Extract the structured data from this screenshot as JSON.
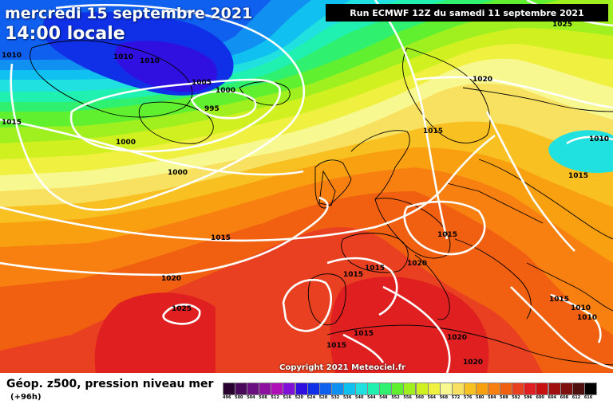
{
  "header": {
    "date": "mercredi 15 septembre 2021",
    "time": "14:00 locale",
    "run": "Run ECMWF 12Z du samedi 11 septembre 2021"
  },
  "map": {
    "copyright": "Copyright 2021 Meteociel.fr",
    "isobar_labels": [
      {
        "id": "l1",
        "text": "1025"
      },
      {
        "id": "l2",
        "text": "1010"
      },
      {
        "id": "l3",
        "text": "1010"
      },
      {
        "id": "l4",
        "text": "1010"
      },
      {
        "id": "l5",
        "text": "1005"
      },
      {
        "id": "l6",
        "text": "1000"
      },
      {
        "id": "l7",
        "text": "995"
      },
      {
        "id": "l8",
        "text": "1015"
      },
      {
        "id": "l9",
        "text": "1000"
      },
      {
        "id": "l10",
        "text": "1000"
      },
      {
        "id": "l11",
        "text": "1020"
      },
      {
        "id": "l12",
        "text": "1015"
      },
      {
        "id": "l13",
        "text": "1010"
      },
      {
        "id": "l14",
        "text": "1015"
      },
      {
        "id": "l15",
        "text": "1015"
      },
      {
        "id": "l16",
        "text": "1015"
      },
      {
        "id": "l17",
        "text": "1020"
      },
      {
        "id": "l18",
        "text": "1015"
      },
      {
        "id": "l19",
        "text": "1020"
      },
      {
        "id": "l20",
        "text": "1025"
      },
      {
        "id": "l21",
        "text": "1015"
      },
      {
        "id": "l22",
        "text": "1015"
      },
      {
        "id": "l23",
        "text": "1010"
      },
      {
        "id": "l24",
        "text": "1010"
      },
      {
        "id": "l25",
        "text": "1015"
      },
      {
        "id": "l26",
        "text": "1020"
      },
      {
        "id": "l27",
        "text": "1020"
      }
    ]
  },
  "legend": {
    "title": "Géop. z500, pression niveau mer",
    "subtitle": "(+96h)",
    "scale": [
      {
        "label": "496",
        "color": "#2a0030"
      },
      {
        "label": "500",
        "color": "#4b0a5a"
      },
      {
        "label": "504",
        "color": "#6a1080"
      },
      {
        "label": "508",
        "color": "#8e10a0"
      },
      {
        "label": "512",
        "color": "#b010b8"
      },
      {
        "label": "516",
        "color": "#8010d8"
      },
      {
        "label": "520",
        "color": "#3010e0"
      },
      {
        "label": "524",
        "color": "#1030e8"
      },
      {
        "label": "528",
        "color": "#1060f0"
      },
      {
        "label": "532",
        "color": "#1090f0"
      },
      {
        "label": "536",
        "color": "#10c0f0"
      },
      {
        "label": "540",
        "color": "#20e0e0"
      },
      {
        "label": "544",
        "color": "#20f0b0"
      },
      {
        "label": "548",
        "color": "#30f070"
      },
      {
        "label": "552",
        "color": "#60f030"
      },
      {
        "label": "556",
        "color": "#a0f020"
      },
      {
        "label": "560",
        "color": "#d0f020"
      },
      {
        "label": "564",
        "color": "#f0f040"
      },
      {
        "label": "568",
        "color": "#f8f890"
      },
      {
        "label": "572",
        "color": "#f8e060"
      },
      {
        "label": "576",
        "color": "#f8c020"
      },
      {
        "label": "580",
        "color": "#f8a010"
      },
      {
        "label": "584",
        "color": "#f88010"
      },
      {
        "label": "588",
        "color": "#f06010"
      },
      {
        "label": "592",
        "color": "#e84020"
      },
      {
        "label": "596",
        "color": "#e02020"
      },
      {
        "label": "600",
        "color": "#c81010"
      },
      {
        "label": "604",
        "color": "#a01010"
      },
      {
        "label": "608",
        "color": "#801010"
      },
      {
        "label": "612",
        "color": "#501010"
      },
      {
        "label": "616",
        "color": "#000000"
      }
    ]
  }
}
